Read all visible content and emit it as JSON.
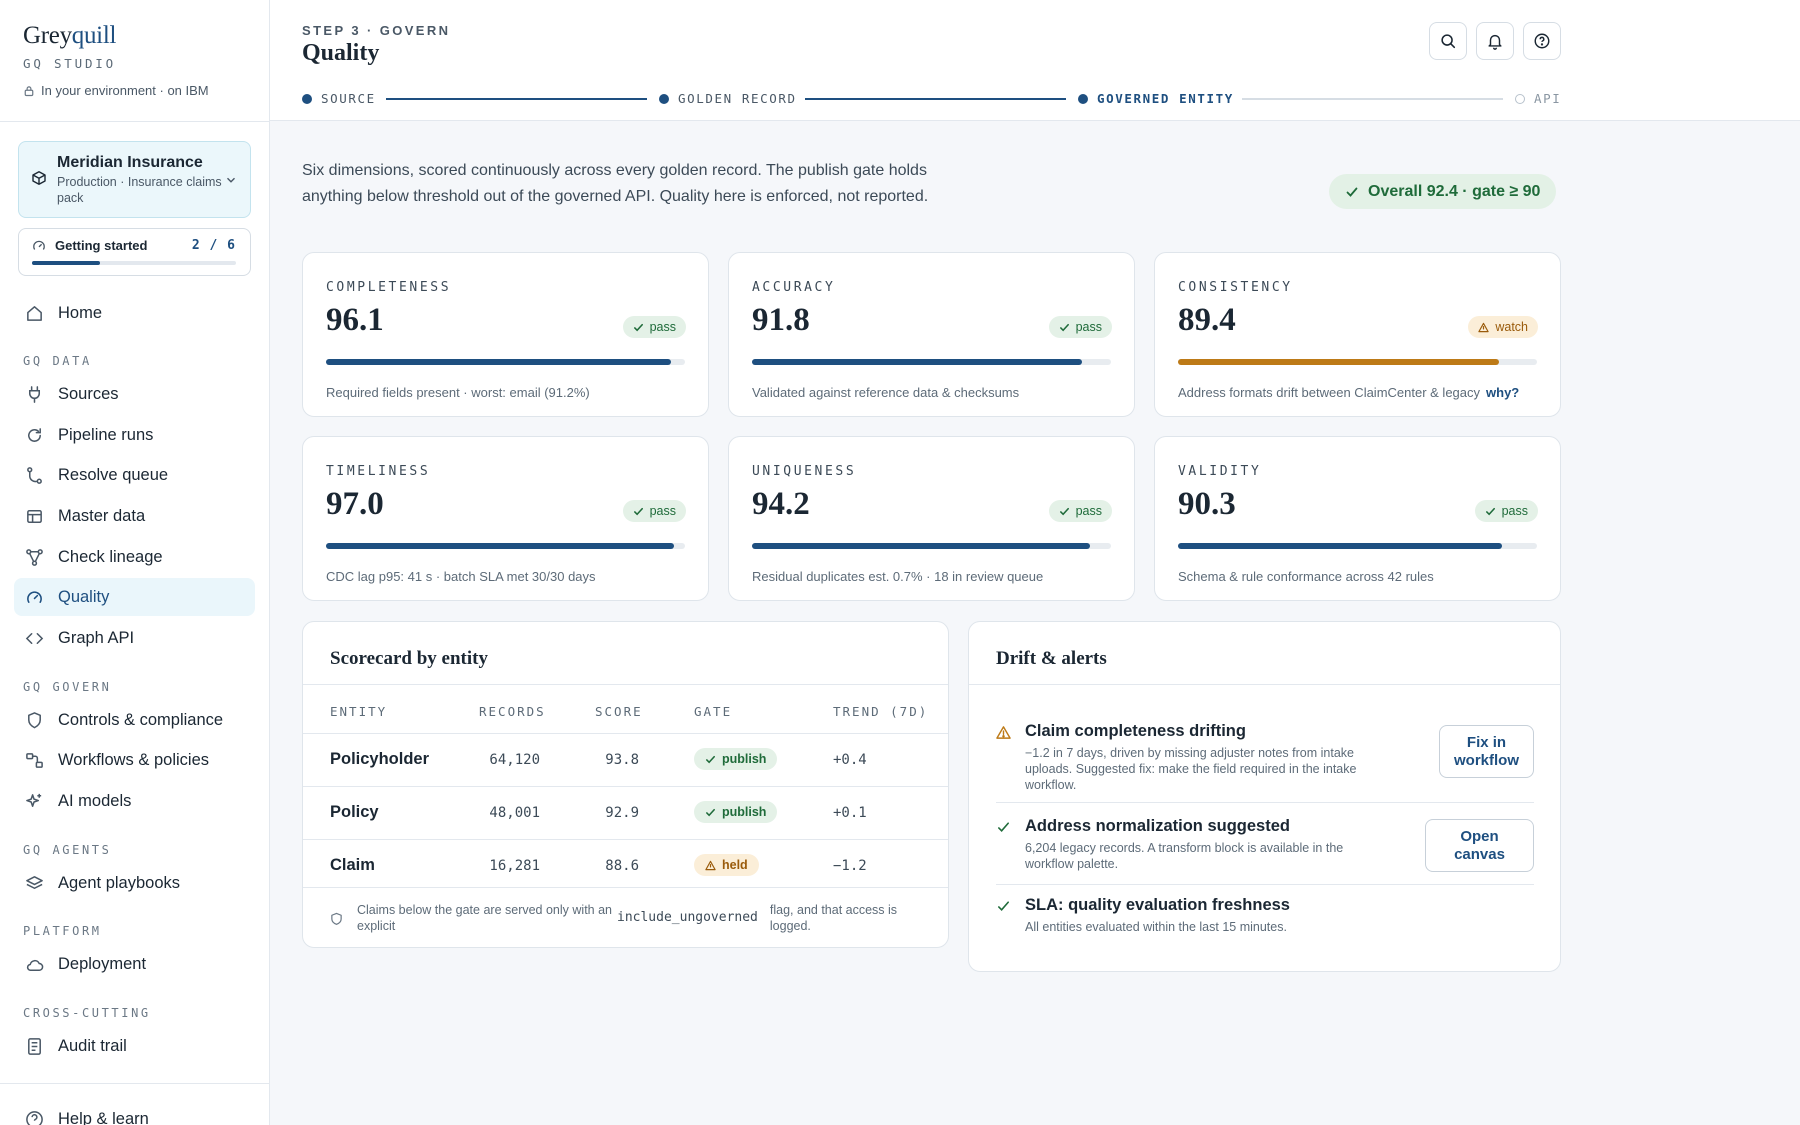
{
  "brand": {
    "name_prefix": "Grey",
    "name_accent": "quill",
    "subtitle": "GQ STUDIO",
    "environment": "In your environment · on IBM"
  },
  "org": {
    "name": "Meridian Insurance",
    "description": "Production · Insurance claims pack"
  },
  "getting_started": {
    "label": "Getting started",
    "count": "2 / 6",
    "progress_fraction": 0.333
  },
  "nav": {
    "home": "Home",
    "sections": {
      "data": "GQ DATA",
      "govern": "GQ GOVERN",
      "agents": "GQ AGENTS",
      "platform": "PLATFORM",
      "cross": "CROSS-CUTTING"
    },
    "items": {
      "sources": "Sources",
      "pipeline_runs": "Pipeline runs",
      "resolve_queue": "Resolve queue",
      "master_data": "Master data",
      "check_lineage": "Check lineage",
      "quality": "Quality",
      "graph_api": "Graph API",
      "controls": "Controls & compliance",
      "workflows": "Workflows & policies",
      "ai_models": "AI models",
      "agent_playbooks": "Agent playbooks",
      "deployment": "Deployment",
      "audit_trail": "Audit trail",
      "help": "Help & learn"
    },
    "active": "quality"
  },
  "header": {
    "step": "STEP 3 · GOVERN",
    "title": "Quality",
    "stepper": {
      "source": "SOURCE",
      "golden_record": "GOLDEN RECORD",
      "governed_entity": "GOVERNED ENTITY",
      "api": "API"
    }
  },
  "intro": "Six dimensions, scored continuously across every golden record. The publish gate holds anything below threshold out of the governed API. Quality here is enforced, not reported.",
  "overall": "Overall 92.4 · gate ≥ 90",
  "metrics": [
    {
      "title": "COMPLETENESS",
      "value": "96.1",
      "score": 96.1,
      "status": "pass",
      "note": "Required fields present · worst: email (91.2%)"
    },
    {
      "title": "ACCURACY",
      "value": "91.8",
      "score": 91.8,
      "status": "pass",
      "note": "Validated against reference data & checksums"
    },
    {
      "title": "CONSISTENCY",
      "value": "89.4",
      "score": 89.4,
      "status": "watch",
      "note": "Address formats drift between ClaimCenter & legacy",
      "link": "why?"
    },
    {
      "title": "TIMELINESS",
      "value": "97.0",
      "score": 97.0,
      "status": "pass",
      "note": "CDC lag p95: 41 s · batch SLA met 30/30 days"
    },
    {
      "title": "UNIQUENESS",
      "value": "94.2",
      "score": 94.2,
      "status": "pass",
      "note": "Residual duplicates est. 0.7% · 18 in review queue"
    },
    {
      "title": "VALIDITY",
      "value": "90.3",
      "score": 90.3,
      "status": "pass",
      "note": "Schema & rule conformance across 42 rules"
    }
  ],
  "scorecard": {
    "title": "Scorecard by entity",
    "columns": {
      "entity": "ENTITY",
      "records": "RECORDS",
      "score": "SCORE",
      "gate": "GATE",
      "trend": "TREND (7D)"
    },
    "rows": [
      {
        "entity": "Policyholder",
        "records": "64,120",
        "score": "93.8",
        "gate": "publish",
        "trend": "+0.4"
      },
      {
        "entity": "Policy",
        "records": "48,001",
        "score": "92.9",
        "gate": "publish",
        "trend": "+0.1"
      },
      {
        "entity": "Claim",
        "records": "16,281",
        "score": "88.6",
        "gate": "held",
        "trend": "−1.2"
      }
    ],
    "footnote_a": "Claims below the gate are served only with an explicit",
    "footnote_code": "include_ungoverned",
    "footnote_b": "flag, and that access is logged."
  },
  "drift": {
    "title": "Drift & alerts",
    "alerts": [
      {
        "type": "warning",
        "title": "Claim completeness drifting",
        "desc": "−1.2 in 7 days, driven by missing adjuster notes from intake uploads. Suggested fix: make the field required in the intake workflow.",
        "action": "Fix in workflow"
      },
      {
        "type": "ok",
        "title": "Address normalization suggested",
        "desc": "6,204 legacy records. A transform block is available in the workflow palette.",
        "action": "Open canvas"
      },
      {
        "type": "ok",
        "title": "SLA: quality evaluation freshness",
        "desc": "All entities evaluated within the last 15 minutes."
      }
    ]
  },
  "colors": {
    "accent": "#1e4f80",
    "pass": "#1f6b3a",
    "watch": "#bd7a17",
    "active_nav_bg": "#eaf6fb"
  }
}
